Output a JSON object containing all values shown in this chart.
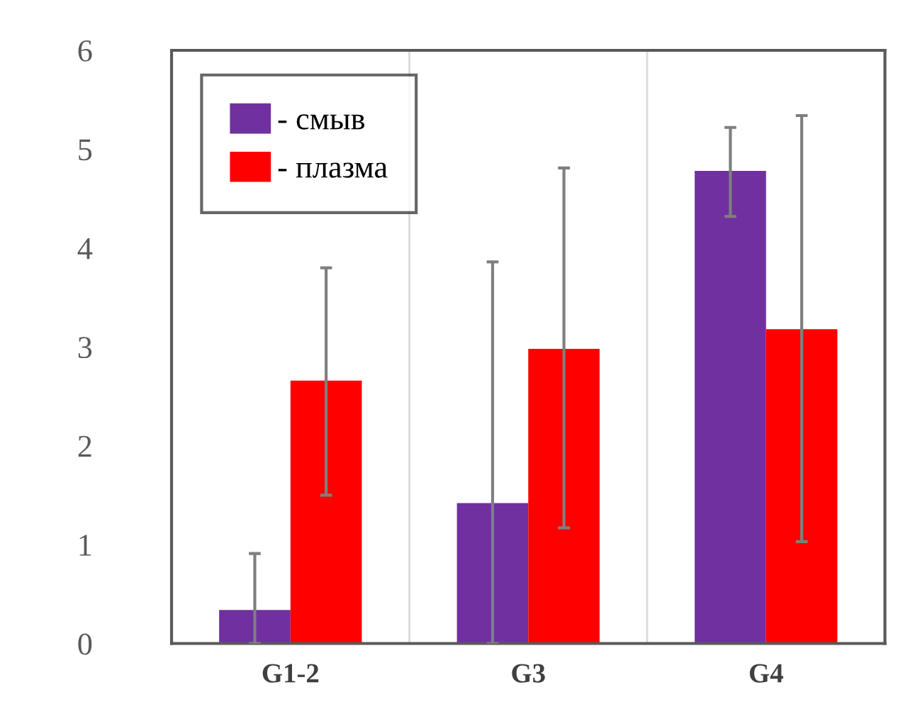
{
  "chart_data": {
    "type": "bar",
    "categories": [
      "G1-2",
      "G3",
      "G4"
    ],
    "series": [
      {
        "name": "- смыв",
        "color": "#7030a0",
        "values": [
          0.34,
          1.42,
          4.78
        ],
        "errors": [
          [
            0,
            0.91
          ],
          [
            0,
            3.86
          ],
          [
            4.32,
            5.22
          ]
        ]
      },
      {
        "name": "- плазма",
        "color": "#ff0000",
        "values": [
          2.66,
          2.98,
          3.18
        ],
        "errors": [
          [
            1.5,
            3.8
          ],
          [
            1.17,
            4.81
          ],
          [
            1.03,
            5.34
          ]
        ]
      }
    ],
    "ylim": [
      0,
      6
    ],
    "yticks": [
      0,
      1,
      2,
      3,
      4,
      5,
      6
    ],
    "grid": "x",
    "legend": "top left"
  }
}
